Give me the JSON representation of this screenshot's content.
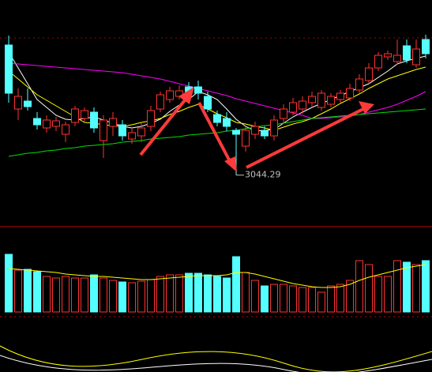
{
  "chart_data": [
    {
      "type": "candlestick",
      "up_color": "#ff3232",
      "down_color": "#54ffff",
      "ylim": [
        2986,
        3266
      ],
      "open": [
        3209,
        3128,
        3138,
        3116,
        3104,
        3106,
        3096,
        3111,
        3116,
        3124,
        3088,
        3106,
        3108,
        3090,
        3094,
        3106,
        3128,
        3140,
        3144,
        3156,
        3156,
        3144,
        3121,
        3116,
        3101,
        3081,
        3096,
        3101,
        3094,
        3116,
        3124,
        3128,
        3136,
        3130,
        3134,
        3140,
        3142,
        3152,
        3164,
        3180,
        3194,
        3188,
        3208,
        3184,
        3216
      ],
      "close": [
        3148,
        3144,
        3131,
        3108,
        3114,
        3113,
        3108,
        3128,
        3126,
        3104,
        3114,
        3116,
        3094,
        3098,
        3104,
        3126,
        3146,
        3151,
        3151,
        3150,
        3148,
        3128,
        3111,
        3106,
        3096,
        3101,
        3106,
        3094,
        3114,
        3128,
        3136,
        3138,
        3144,
        3148,
        3144,
        3148,
        3154,
        3166,
        3180,
        3196,
        3198,
        3196,
        3190,
        3204,
        3198
      ],
      "high": [
        3221,
        3154,
        3154,
        3124,
        3120,
        3118,
        3112,
        3132,
        3130,
        3130,
        3120,
        3124,
        3114,
        3104,
        3110,
        3132,
        3150,
        3156,
        3158,
        3162,
        3164,
        3150,
        3126,
        3124,
        3104,
        3106,
        3112,
        3106,
        3120,
        3134,
        3142,
        3144,
        3150,
        3152,
        3148,
        3152,
        3160,
        3172,
        3186,
        3200,
        3202,
        3216,
        3216,
        3216,
        3222
      ],
      "low": [
        3136,
        3114,
        3126,
        3102,
        3098,
        3100,
        3086,
        3106,
        3112,
        3098,
        3066,
        3094,
        3088,
        3084,
        3086,
        3100,
        3124,
        3136,
        3140,
        3144,
        3140,
        3124,
        3106,
        3100,
        3044.29,
        3074,
        3090,
        3090,
        3088,
        3110,
        3120,
        3122,
        3130,
        3126,
        3130,
        3136,
        3138,
        3148,
        3160,
        3176,
        3190,
        3184,
        3186,
        3180,
        3192
      ],
      "series": [
        {
          "color": "#ffffff",
          "values": [
            3200,
            3180,
            3160,
            3140,
            3130,
            3120,
            3115,
            3114,
            3116,
            3118,
            3114,
            3110,
            3106,
            3104,
            3106,
            3110,
            3115,
            3125,
            3133,
            3140,
            3150,
            3146,
            3140,
            3128,
            3115,
            3106,
            3100,
            3101,
            3102,
            3110,
            3118,
            3124,
            3130,
            3135,
            3140,
            3145,
            3150,
            3155,
            3160,
            3168,
            3176,
            3185,
            3189,
            3192,
            3195
          ]
        },
        {
          "color": "#ffff00",
          "values": [
            3176,
            3166,
            3156,
            3146,
            3139,
            3132,
            3125,
            3118,
            3111,
            3110,
            3108,
            3107,
            3106,
            3108,
            3111,
            3113,
            3116,
            3121,
            3125,
            3130,
            3134,
            3128,
            3122,
            3117,
            3111,
            3109,
            3106,
            3104,
            3101,
            3105,
            3109,
            3112,
            3116,
            3122,
            3128,
            3135,
            3141,
            3147,
            3154,
            3160,
            3166,
            3170,
            3174,
            3178,
            3181
          ]
        },
        {
          "color": "#ff00ff",
          "values": [
            3186,
            3185,
            3184,
            3183,
            3182,
            3181,
            3180,
            3179,
            3178,
            3177,
            3176,
            3175,
            3174,
            3172,
            3170,
            3168,
            3166,
            3163,
            3160,
            3157,
            3154,
            3151,
            3148,
            3145,
            3141,
            3138,
            3135,
            3132,
            3129,
            3126,
            3123,
            3120,
            3116,
            3116,
            3117,
            3118,
            3119,
            3121,
            3124,
            3127,
            3130,
            3134,
            3139,
            3144,
            3150
          ]
        },
        {
          "color": "#00e000",
          "values": [
            3068,
            3070,
            3072,
            3073,
            3075,
            3076,
            3078,
            3079,
            3081,
            3082,
            3083,
            3084,
            3086,
            3087,
            3088,
            3090,
            3091,
            3092,
            3093,
            3095,
            3096,
            3097,
            3098,
            3100,
            3101,
            3103,
            3105,
            3107,
            3108,
            3110,
            3112,
            3114,
            3116,
            3117,
            3118,
            3119,
            3120,
            3121,
            3122,
            3123,
            3124,
            3125,
            3126,
            3127,
            3128
          ]
        }
      ]
    },
    {
      "type": "bar",
      "ylim": [
        0,
        80
      ],
      "values": [
        73,
        53,
        54,
        51,
        45,
        43,
        45,
        43,
        43,
        47,
        43,
        40,
        38,
        37,
        39,
        41,
        45,
        47,
        47,
        49,
        49,
        47,
        45,
        43,
        70,
        50,
        40,
        33,
        35,
        35,
        33,
        31,
        31,
        25,
        33,
        35,
        40,
        65,
        60,
        45,
        45,
        65,
        63,
        60,
        65
      ],
      "series": [
        {
          "color": "#ffff00",
          "values": [
            55,
            54,
            53,
            52,
            51,
            50,
            48,
            47,
            46,
            45,
            45,
            44,
            43,
            42,
            41,
            41,
            42,
            43,
            44,
            45,
            46,
            46,
            46,
            47,
            50,
            50,
            48,
            45,
            42,
            39,
            36,
            34,
            32,
            31,
            31,
            32,
            35,
            40,
            44,
            47,
            50,
            53,
            56,
            58,
            60
          ]
        }
      ]
    }
  ]
}
